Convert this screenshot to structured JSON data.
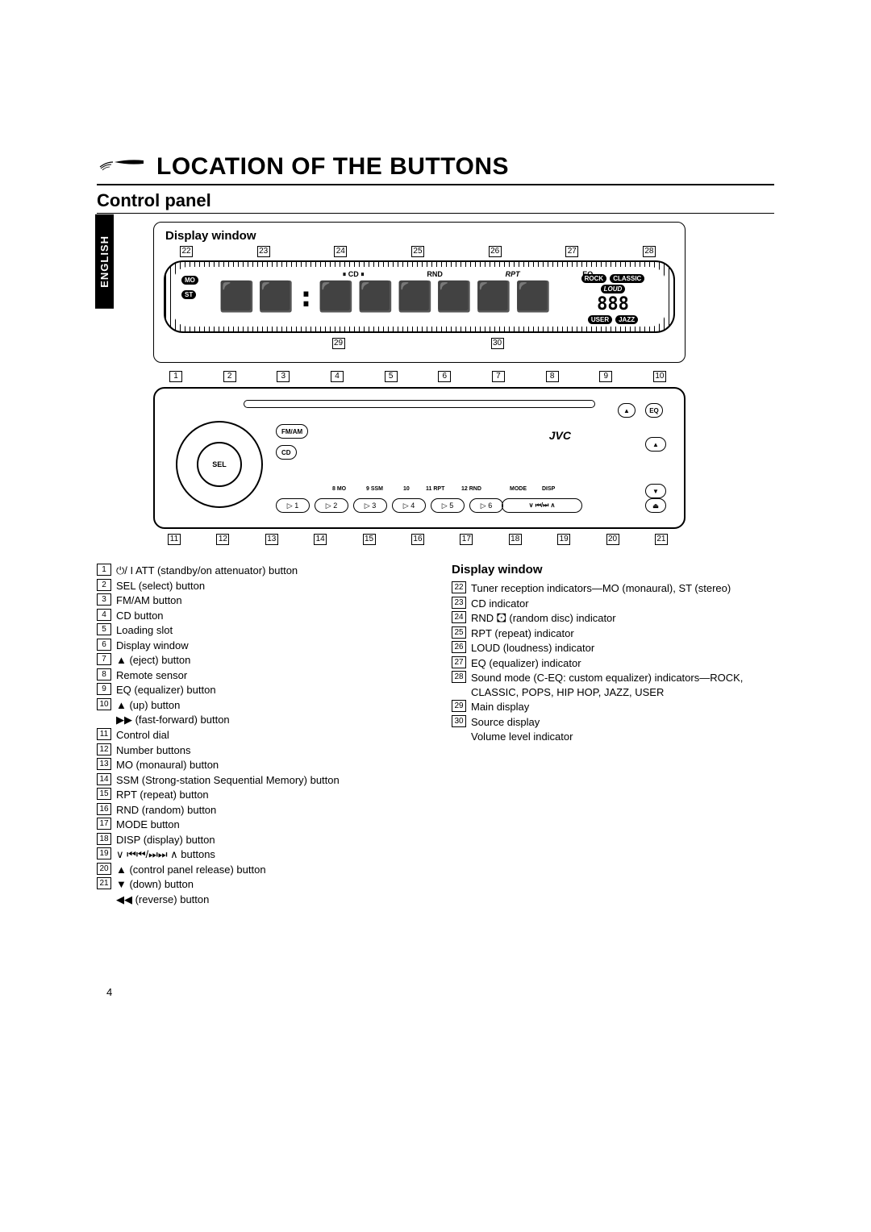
{
  "page_number": "4",
  "language_tab": "ENGLISH",
  "title": "LOCATION OF THE BUTTONS",
  "subtitle": "Control panel",
  "diagram": {
    "caption_top": "Display window",
    "top_callouts": [
      "22",
      "23",
      "24",
      "25",
      "26",
      "27",
      "28"
    ],
    "mid_callouts": [
      "29",
      "30"
    ],
    "panel_callouts_top": [
      "1",
      "2",
      "3",
      "4",
      "5",
      "6",
      "7",
      "8",
      "9",
      "10"
    ],
    "panel_callouts_bottom": [
      "11",
      "12",
      "13",
      "14",
      "15",
      "16",
      "17",
      "18",
      "19",
      "20",
      "21"
    ],
    "lcd_labels": {
      "mo": "MO",
      "st": "ST",
      "cd": "CD",
      "rnd": "RND",
      "rpt": "RPT",
      "eq": "EQ",
      "rock": "ROCK",
      "classic": "CLASSIC",
      "pops": "POPS",
      "hiphop": "HIP HOP",
      "user": "USER",
      "jazz": "JAZZ",
      "loud": "LOUD",
      "digits": "888"
    },
    "radio": {
      "brand": "JVC",
      "sel": "SEL",
      "fmam": "FM/AM",
      "cd": "CD",
      "nums": [
        "1",
        "2",
        "3",
        "4",
        "5",
        "6"
      ],
      "mode": "MODE",
      "disp": "DISP",
      "mo": "8 MO",
      "ssm": "9 SSM",
      "n10": "10",
      "rpt": "11 RPT",
      "rnd": "12 RND"
    }
  },
  "left_list": [
    {
      "n": "1",
      "t": "⏻/ I ATT (standby/on attenuator) button"
    },
    {
      "n": "2",
      "t": "SEL (select) button"
    },
    {
      "n": "3",
      "t": "FM/AM button"
    },
    {
      "n": "4",
      "t": "CD button"
    },
    {
      "n": "5",
      "t": "Loading slot"
    },
    {
      "n": "6",
      "t": "Display window"
    },
    {
      "n": "7",
      "t": "▲ (eject) button"
    },
    {
      "n": "8",
      "t": "Remote sensor"
    },
    {
      "n": "9",
      "t": "EQ (equalizer) button"
    },
    {
      "n": "10",
      "t": "▲ (up) button"
    },
    {
      "n": "",
      "t": "▶▶ (fast-forward) button",
      "sub": true
    },
    {
      "n": "11",
      "t": "Control dial"
    },
    {
      "n": "12",
      "t": "Number buttons"
    },
    {
      "n": "13",
      "t": "MO (monaural) button"
    },
    {
      "n": "14",
      "t": "SSM (Strong-station Sequential Memory) button"
    },
    {
      "n": "15",
      "t": "RPT (repeat) button"
    },
    {
      "n": "16",
      "t": "RND (random) button"
    },
    {
      "n": "17",
      "t": "MODE button"
    },
    {
      "n": "18",
      "t": "DISP (display) button"
    },
    {
      "n": "19",
      "t": "∨  ⏮⏮/⏭⏭  ∧  buttons"
    },
    {
      "n": "20",
      "t": "▲ (control panel release) button"
    },
    {
      "n": "21",
      "t": "▼ (down) button"
    },
    {
      "n": "",
      "t": "◀◀ (reverse) button",
      "sub": true
    }
  ],
  "right_heading": "Display window",
  "right_list": [
    {
      "n": "22",
      "t": "Tuner reception indicators—MO (monaural), ST (stereo)"
    },
    {
      "n": "23",
      "t": "CD indicator"
    },
    {
      "n": "24",
      "t": "RND  🖸  (random disc) indicator"
    },
    {
      "n": "25",
      "t": "RPT (repeat) indicator"
    },
    {
      "n": "26",
      "t": "LOUD (loudness) indicator"
    },
    {
      "n": "27",
      "t": "EQ (equalizer) indicator"
    },
    {
      "n": "28",
      "t": "Sound mode (C-EQ: custom equalizer) indicators—ROCK, CLASSIC, POPS, HIP HOP, JAZZ, USER"
    },
    {
      "n": "29",
      "t": "Main display"
    },
    {
      "n": "30",
      "t": "Source display"
    },
    {
      "n": "",
      "t": "Volume level indicator",
      "sub": true
    }
  ]
}
